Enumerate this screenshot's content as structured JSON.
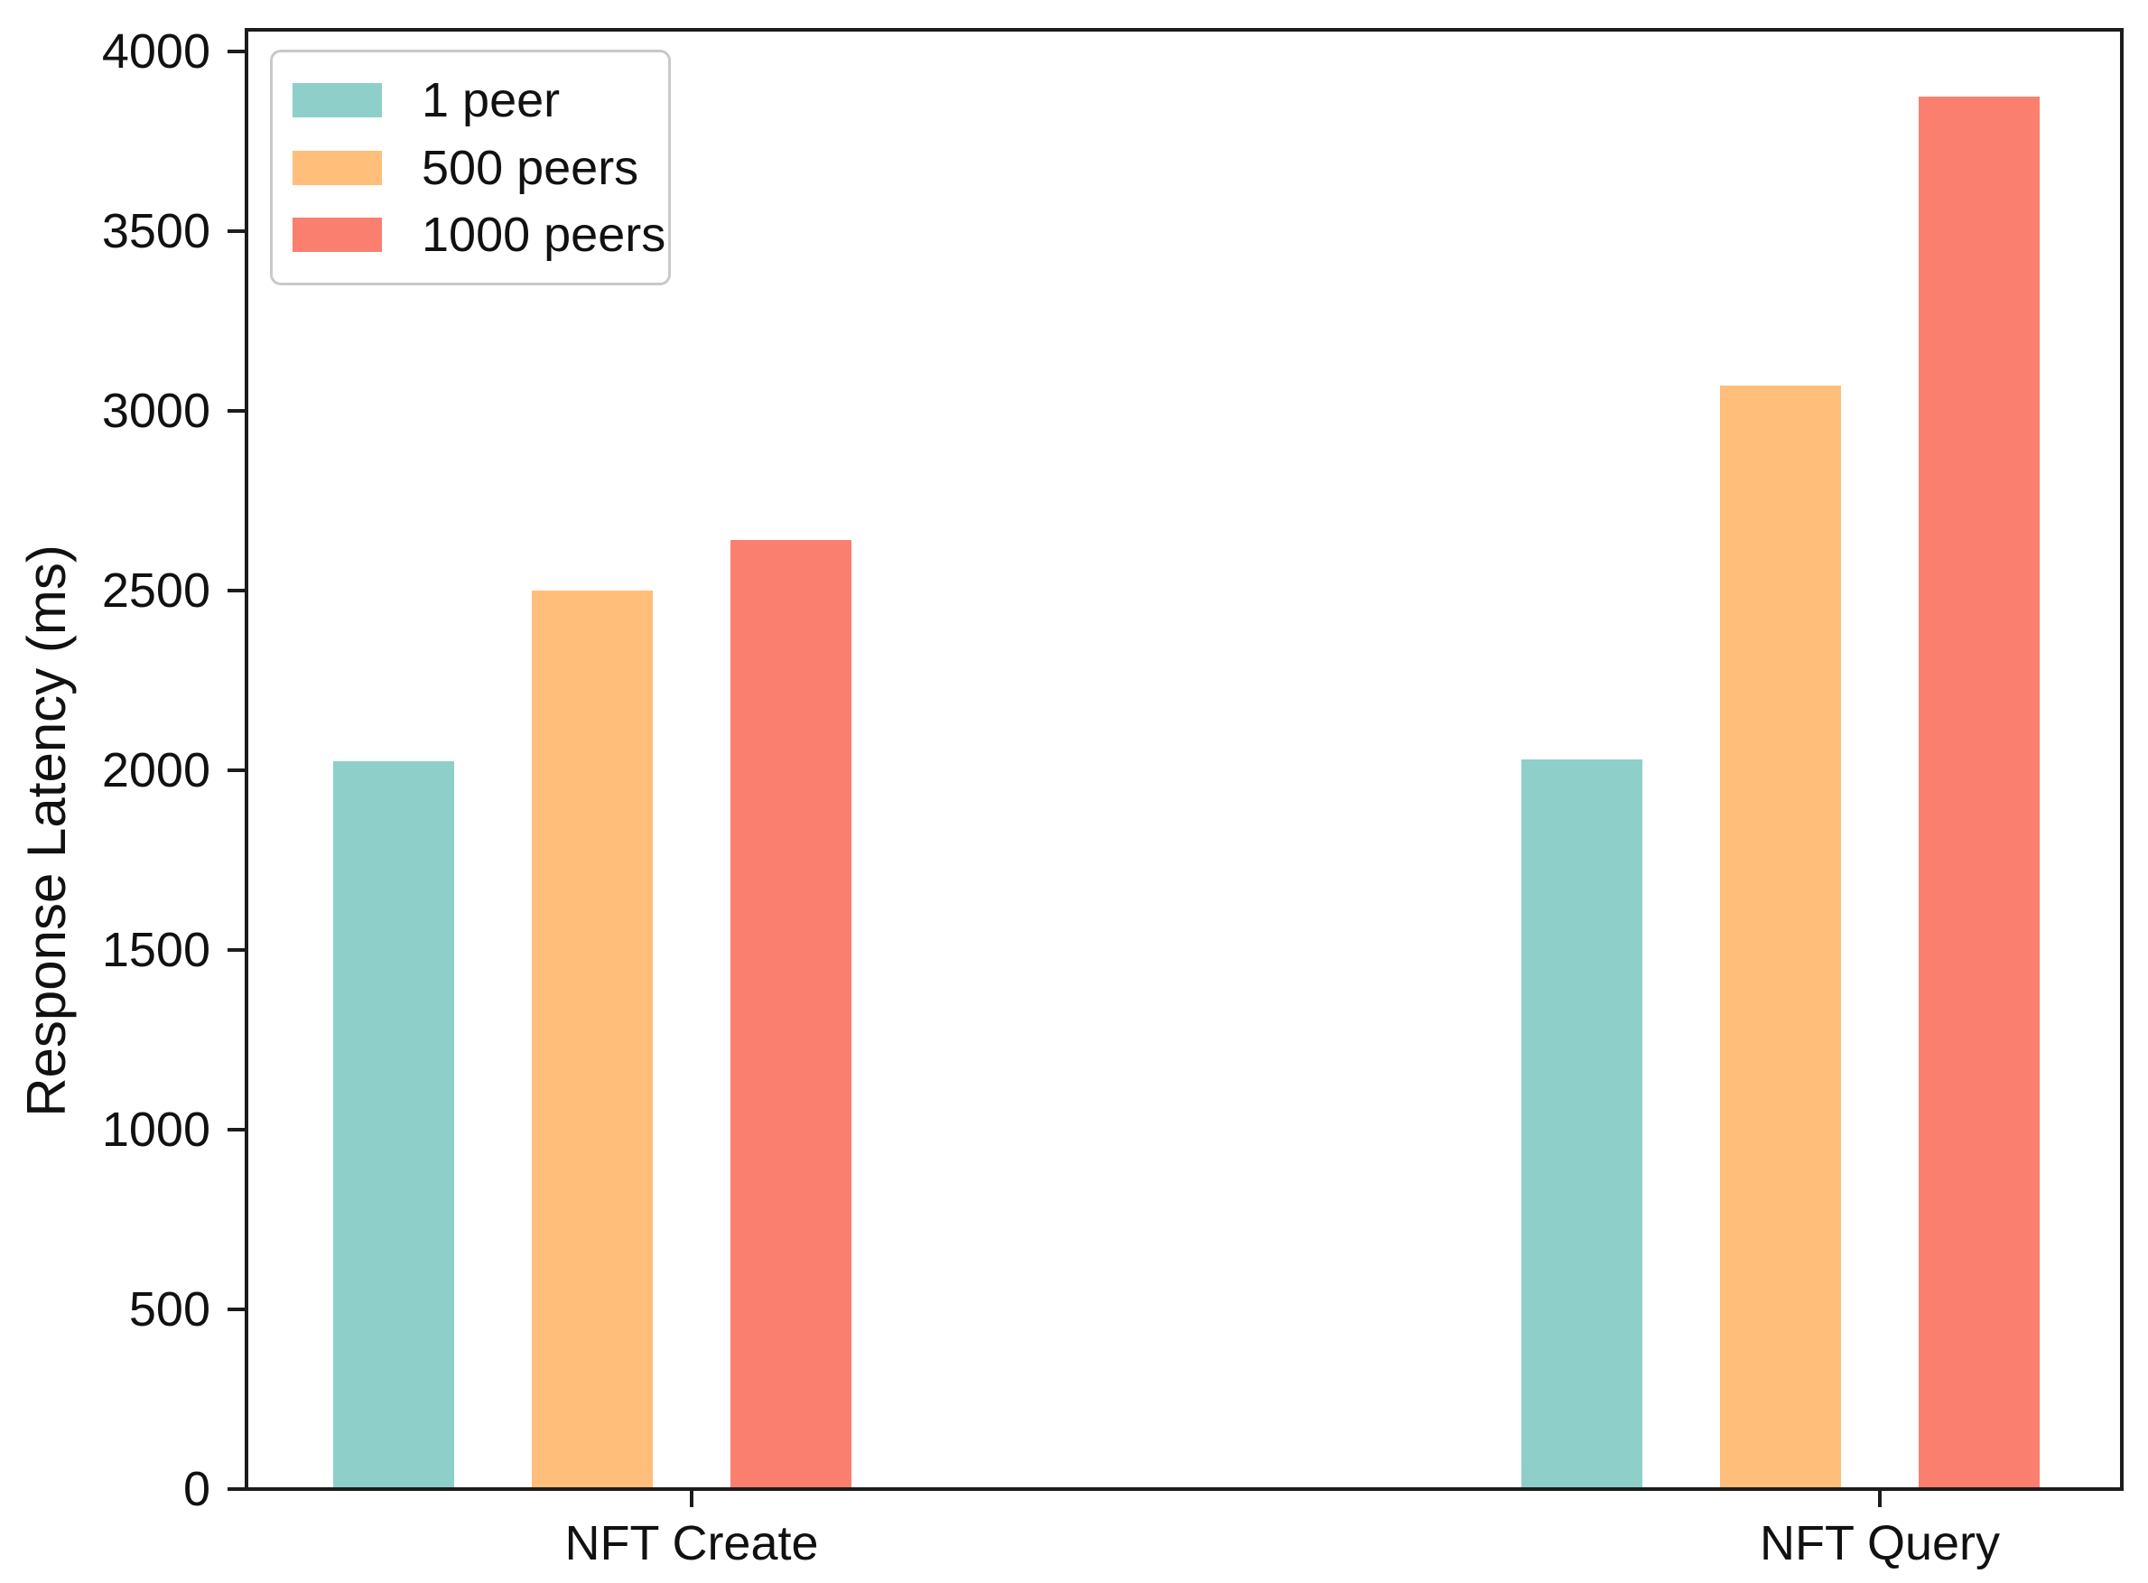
{
  "figure": {
    "background": "#ffffff",
    "spine_color": "#1c1c1c"
  },
  "chart_data": {
    "type": "bar",
    "title": "",
    "xlabel": "",
    "ylabel": "Response Latency (ms)",
    "categories": [
      "NFT Create",
      "NFT Query"
    ],
    "series": [
      {
        "name": "1 peer",
        "color": "#8ECFC9",
        "values": [
          2025,
          2030
        ]
      },
      {
        "name": "500 peers",
        "color": "#FFBE7A",
        "values": [
          2500,
          3070
        ]
      },
      {
        "name": "1000 peers",
        "color": "#FA7F6F",
        "values": [
          2640,
          3875
        ]
      }
    ],
    "ylim": [
      0,
      4000
    ],
    "yticks": [
      0,
      500,
      1000,
      1500,
      2000,
      2500,
      3000,
      3500,
      4000
    ],
    "grid": false,
    "legend_position": "upper-left",
    "legend_labels": [
      "1 peer",
      "500 peers",
      "1000 peers"
    ]
  }
}
